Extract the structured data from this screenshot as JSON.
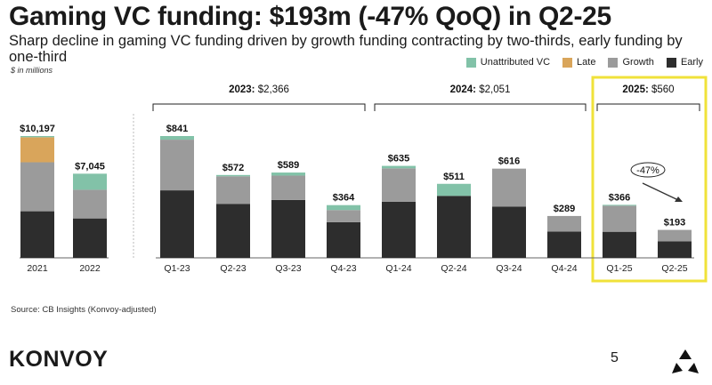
{
  "slide": {
    "title": "Gaming VC funding: $193m (-47% QoQ) in Q2-25",
    "subtitle": "Sharp decline in gaming VC funding driven by growth funding contracting by two-thirds, early funding by one-third",
    "units_note": "$ in millions",
    "source": "Source: CB Insights (Konvoy-adjusted)",
    "brand": "KONVOY",
    "page_number": "5"
  },
  "colors": {
    "early": "#2d2d2d",
    "growth": "#9b9b9b",
    "late": "#d9a55b",
    "unattributed": "#82c2a8",
    "highlight_box": "#f0e23a",
    "bracket": "#222222"
  },
  "chart_data": {
    "type": "bar",
    "stacked": true,
    "categories": [
      "2021",
      "2022",
      "Q1-23",
      "Q2-23",
      "Q3-23",
      "Q4-23",
      "Q1-24",
      "Q2-24",
      "Q3-24",
      "Q4-24",
      "Q1-25",
      "Q2-25"
    ],
    "totals_labels": [
      "$10,197",
      "$7,045",
      "$841",
      "$572",
      "$589",
      "$364",
      "$635",
      "$511",
      "$616",
      "$289",
      "$366",
      "$193"
    ],
    "series": [
      {
        "name": "Early",
        "values": [
          3900,
          3300,
          466,
          373,
          400,
          246,
          388,
          428,
          353,
          182,
          180,
          114
        ]
      },
      {
        "name": "Growth",
        "values": [
          4100,
          2400,
          350,
          190,
          168,
          84,
          230,
          0,
          263,
          107,
          180,
          79
        ]
      },
      {
        "name": "Late",
        "values": [
          2097,
          0,
          0,
          0,
          0,
          0,
          0,
          0,
          0,
          0,
          0,
          0
        ]
      },
      {
        "name": "Unattributed VC",
        "values": [
          100,
          1345,
          25,
          9,
          21,
          34,
          17,
          83,
          0,
          0,
          6,
          0
        ]
      }
    ],
    "legend_order": [
      "Unattributed VC",
      "Late",
      "Growth",
      "Early"
    ],
    "legend_position": "top-right",
    "annual_scale_max": 10197,
    "quarterly_scale_max": 841,
    "groups": [
      {
        "prefix": "2023:",
        "value": "$2,366"
      },
      {
        "prefix": "2024:",
        "value": "$2,051"
      },
      {
        "prefix": "2025:",
        "value": "$560"
      }
    ],
    "annotation": {
      "text": "-47%",
      "from": "Q1-25",
      "to": "Q2-25"
    }
  }
}
